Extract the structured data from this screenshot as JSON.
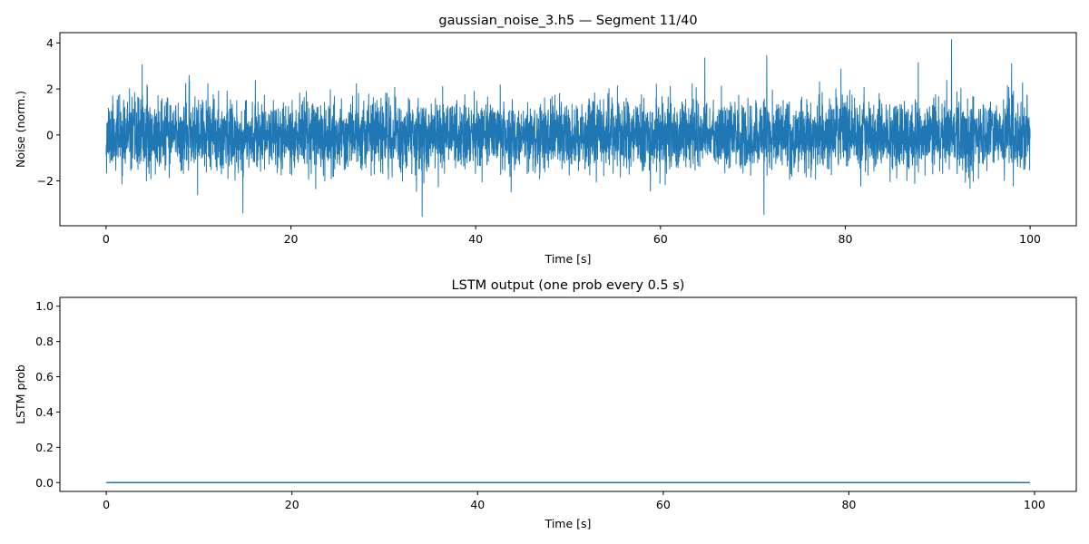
{
  "chart_data": [
    {
      "type": "line",
      "title": "gaussian_noise_3.h5 — Segment 11/40",
      "xlabel": "Time [s]",
      "ylabel": "Noise (norm.)",
      "xlim": [
        -5,
        105
      ],
      "ylim": [
        -3.95,
        4.45
      ],
      "x_ticks": [
        0,
        20,
        40,
        60,
        80,
        100
      ],
      "x_tick_labels": [
        "0",
        "20",
        "40",
        "60",
        "80",
        "100"
      ],
      "y_ticks": [
        -2,
        0,
        2,
        4
      ],
      "y_tick_labels": [
        "−2",
        "0",
        "2",
        "4"
      ],
      "series": [
        {
          "name": "noise",
          "color": "#1f77b4",
          "distribution": "gaussian",
          "mean": 0,
          "std": 0.75,
          "t_start": 0,
          "t_end": 100,
          "peaks": [
            [
              91.5,
              4.15
            ],
            [
              34.2,
              -3.55
            ],
            [
              71.2,
              -3.45
            ],
            [
              14.8,
              -3.4
            ],
            [
              3.9,
              3.05
            ],
            [
              71.5,
              3.45
            ],
            [
              64.8,
              3.35
            ],
            [
              87.9,
              3.15
            ],
            [
              98.0,
              3.1
            ]
          ]
        }
      ],
      "grid": false
    },
    {
      "type": "line",
      "title": "LSTM output (one prob every 0.5 s)",
      "xlabel": "Time [s]",
      "ylabel": "LSTM prob",
      "xlim": [
        -5,
        104.5
      ],
      "ylim": [
        -0.05,
        1.05
      ],
      "x_ticks": [
        0,
        20,
        40,
        60,
        80,
        100
      ],
      "x_tick_labels": [
        "0",
        "20",
        "40",
        "60",
        "80",
        "100"
      ],
      "y_ticks": [
        0,
        0.2,
        0.4,
        0.6,
        0.8,
        1.0
      ],
      "y_tick_labels": [
        "0.0",
        "0.2",
        "0.4",
        "0.6",
        "0.8",
        "1.0"
      ],
      "series": [
        {
          "name": "lstm_prob",
          "color": "#1f77b4",
          "x": [
            0,
            99.5
          ],
          "values": [
            0.0,
            0.0
          ]
        }
      ],
      "grid": false
    }
  ]
}
